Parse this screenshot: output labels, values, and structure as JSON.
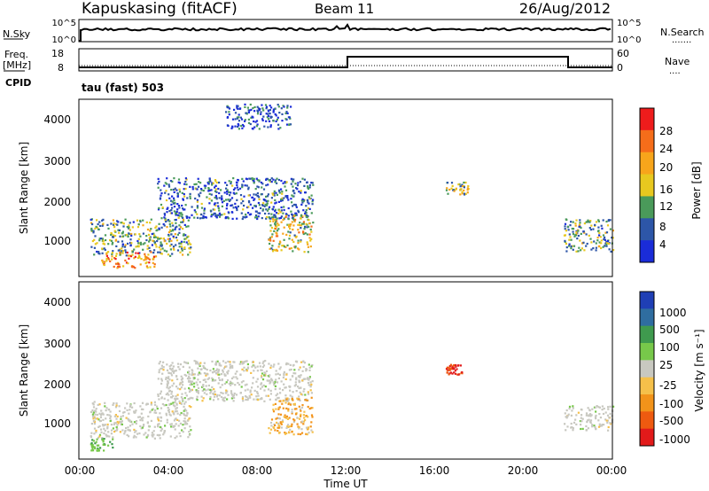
{
  "header": {
    "station": "Kapuskasing (fitACF)",
    "beam": "Beam 11",
    "date": "26/Aug/2012"
  },
  "nsky": {
    "left_label": "N.Sky",
    "left_ticks": [
      "10^5",
      "10^0"
    ],
    "right_ticks": [
      "10^5",
      "10^0"
    ],
    "right_label": "N.Search",
    "right_key": "......."
  },
  "freq": {
    "left_label_1": "Freq.",
    "left_label_2": "[MHz]",
    "left_ticks": [
      "18",
      "8"
    ],
    "right_ticks": [
      "60",
      "0"
    ],
    "right_label": "Nave",
    "right_key": "....",
    "cpid_label": "CPID",
    "mode_text": "tau (fast) 503"
  },
  "xaxis": {
    "ticks": [
      "00:00",
      "04:00",
      "08:00",
      "12:00",
      "16:00",
      "20:00",
      "00:00"
    ],
    "label": "Time UT"
  },
  "power_panel": {
    "ylabel": "Slant Range [km]",
    "yticks": [
      "4000",
      "3000",
      "2000",
      "1000"
    ]
  },
  "velocity_panel": {
    "ylabel": "Slant Range [km]",
    "yticks": [
      "4000",
      "3000",
      "2000",
      "1000"
    ]
  },
  "power_colorbar": {
    "label": "Power [dB]",
    "ticks": [
      "28",
      "24",
      "20",
      "16",
      "12",
      "8",
      "4"
    ],
    "colors": [
      "#ee1c1c",
      "#f56d1a",
      "#f7a51b",
      "#e8c81f",
      "#4a9a5a",
      "#2d56a8",
      "#1a2cd8"
    ]
  },
  "velocity_colorbar": {
    "label": "Velocity [m s⁻¹]",
    "ticks": [
      "1000",
      "500",
      "100",
      "25",
      "-25",
      "-100",
      "-500",
      "-1000"
    ],
    "colors": [
      "#1f3fb5",
      "#2f6da0",
      "#3f9a4e",
      "#77c84a",
      "#c8c8c0",
      "#f5c04a",
      "#f2931a",
      "#ee5a10",
      "#e21a1a"
    ]
  },
  "chart_data": [
    {
      "type": "heatmap",
      "title": "Power",
      "xlabel": "Time UT",
      "ylabel": "Slant Range [km]",
      "xlim_hours": [
        0,
        24
      ],
      "ylim_km": [
        180,
        4500
      ],
      "colorbar_label": "Power [dB]",
      "echo_regions": [
        {
          "t_start": 0.5,
          "t_end": 5.0,
          "r_min": 700,
          "r_max": 1600,
          "power_db": 12
        },
        {
          "t_start": 1.0,
          "t_end": 3.5,
          "r_min": 400,
          "r_max": 800,
          "power_db": 22
        },
        {
          "t_start": 3.5,
          "t_end": 10.5,
          "r_min": 1600,
          "r_max": 2600,
          "power_db": 8
        },
        {
          "t_start": 8.5,
          "t_end": 10.5,
          "r_min": 800,
          "r_max": 1700,
          "power_db": 16
        },
        {
          "t_start": 6.5,
          "t_end": 9.5,
          "r_min": 3800,
          "r_max": 4400,
          "power_db": 6
        },
        {
          "t_start": 16.5,
          "t_end": 17.5,
          "r_min": 2200,
          "r_max": 2500,
          "power_db": 14
        },
        {
          "t_start": 21.8,
          "t_end": 24.0,
          "r_min": 800,
          "r_max": 1600,
          "power_db": 12
        }
      ]
    },
    {
      "type": "heatmap",
      "title": "Velocity",
      "xlabel": "Time UT",
      "ylabel": "Slant Range [km]",
      "xlim_hours": [
        0,
        24
      ],
      "ylim_km": [
        180,
        4500
      ],
      "colorbar_label": "Velocity [m s⁻¹]",
      "echo_regions": [
        {
          "t_start": 0.5,
          "t_end": 5.0,
          "r_min": 700,
          "r_max": 1600,
          "velocity": 0
        },
        {
          "t_start": 0.5,
          "t_end": 1.5,
          "r_min": 400,
          "r_max": 700,
          "velocity": 80
        },
        {
          "t_start": 3.5,
          "t_end": 10.5,
          "r_min": 1600,
          "r_max": 2600,
          "velocity": 0
        },
        {
          "t_start": 8.5,
          "t_end": 10.5,
          "r_min": 800,
          "r_max": 1700,
          "velocity": -200
        },
        {
          "t_start": 16.5,
          "t_end": 17.2,
          "r_min": 2250,
          "r_max": 2500,
          "velocity": -800
        },
        {
          "t_start": 21.8,
          "t_end": 24.0,
          "r_min": 900,
          "r_max": 1500,
          "velocity": 0
        }
      ]
    }
  ]
}
